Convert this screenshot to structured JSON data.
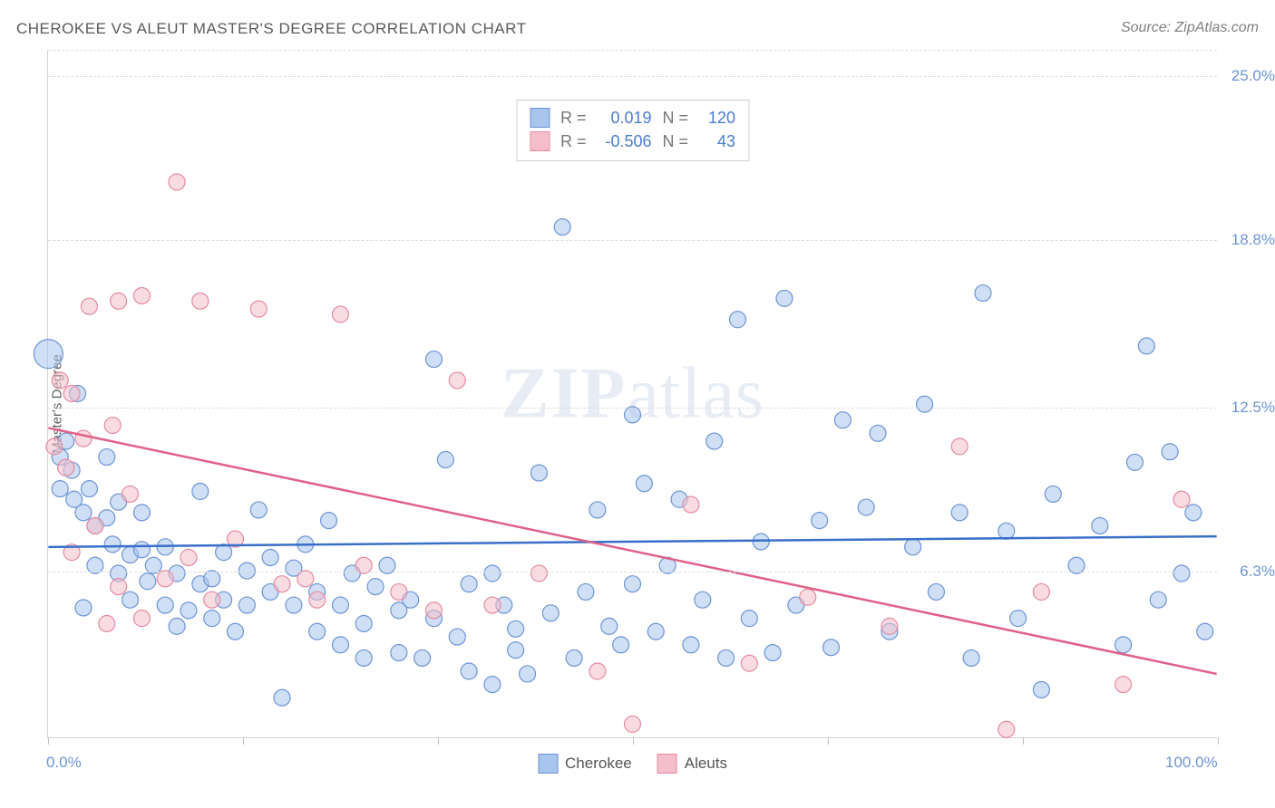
{
  "title": "CHEROKEE VS ALEUT MASTER'S DEGREE CORRELATION CHART",
  "source_prefix": "Source: ",
  "source_name": "ZipAtlas.com",
  "y_axis_label": "Master's Degree",
  "watermark_zip": "ZIP",
  "watermark_atlas": "atlas",
  "chart": {
    "type": "scatter",
    "xlim": [
      0,
      100
    ],
    "ylim": [
      0,
      26
    ],
    "x_ticks": [
      0,
      16.67,
      33.33,
      50,
      66.67,
      83.33,
      100
    ],
    "x_tick_labels_shown": {
      "0": "0.0%",
      "100": "100.0%"
    },
    "y_gridlines": [
      6.3,
      12.5,
      18.8,
      25.0
    ],
    "y_tick_labels": [
      "6.3%",
      "12.5%",
      "18.8%",
      "25.0%"
    ],
    "background_color": "#ffffff",
    "grid_color": "#dcdcdc",
    "axis_color": "#d5d5d5",
    "label_color": "#6d94d6",
    "title_color": "#5a5a5a",
    "title_fontsize": 17,
    "label_fontsize": 17,
    "point_radius": 9,
    "point_opacity": 0.55,
    "stroke_width": 1.2,
    "trend_line_width": 2.5
  },
  "series": [
    {
      "name": "Cherokee",
      "color_fill": "#a8c5ec",
      "color_stroke": "#6d94d6",
      "R": "0.019",
      "N": "120",
      "trend": {
        "x1": 0,
        "y1": 7.2,
        "x2": 100,
        "y2": 7.6,
        "color": "#3a6fc9"
      },
      "points": [
        {
          "x": 0,
          "y": 14.5,
          "r": 16
        },
        {
          "x": 1,
          "y": 10.6
        },
        {
          "x": 1.5,
          "y": 11.2
        },
        {
          "x": 1,
          "y": 9.4
        },
        {
          "x": 2,
          "y": 10.1
        },
        {
          "x": 2.2,
          "y": 9.0
        },
        {
          "x": 2.5,
          "y": 13.0
        },
        {
          "x": 3,
          "y": 8.5
        },
        {
          "x": 3,
          "y": 4.9
        },
        {
          "x": 3.5,
          "y": 9.4
        },
        {
          "x": 4,
          "y": 8.0
        },
        {
          "x": 4,
          "y": 6.5
        },
        {
          "x": 5,
          "y": 8.3
        },
        {
          "x": 5,
          "y": 10.6
        },
        {
          "x": 5.5,
          "y": 7.3
        },
        {
          "x": 6,
          "y": 8.9
        },
        {
          "x": 6,
          "y": 6.2
        },
        {
          "x": 7,
          "y": 6.9
        },
        {
          "x": 7,
          "y": 5.2
        },
        {
          "x": 8,
          "y": 8.5
        },
        {
          "x": 8,
          "y": 7.1
        },
        {
          "x": 8.5,
          "y": 5.9
        },
        {
          "x": 9,
          "y": 6.5
        },
        {
          "x": 10,
          "y": 5.0
        },
        {
          "x": 10,
          "y": 7.2
        },
        {
          "x": 11,
          "y": 4.2
        },
        {
          "x": 11,
          "y": 6.2
        },
        {
          "x": 12,
          "y": 4.8
        },
        {
          "x": 13,
          "y": 9.3
        },
        {
          "x": 13,
          "y": 5.8
        },
        {
          "x": 14,
          "y": 6.0
        },
        {
          "x": 14,
          "y": 4.5
        },
        {
          "x": 15,
          "y": 7.0
        },
        {
          "x": 15,
          "y": 5.2
        },
        {
          "x": 16,
          "y": 4.0
        },
        {
          "x": 17,
          "y": 6.3
        },
        {
          "x": 17,
          "y": 5.0
        },
        {
          "x": 18,
          "y": 8.6
        },
        {
          "x": 19,
          "y": 5.5
        },
        {
          "x": 19,
          "y": 6.8
        },
        {
          "x": 20,
          "y": 1.5
        },
        {
          "x": 21,
          "y": 5.0
        },
        {
          "x": 21,
          "y": 6.4
        },
        {
          "x": 22,
          "y": 7.3
        },
        {
          "x": 23,
          "y": 4.0
        },
        {
          "x": 23,
          "y": 5.5
        },
        {
          "x": 24,
          "y": 8.2
        },
        {
          "x": 25,
          "y": 3.5
        },
        {
          "x": 25,
          "y": 5.0
        },
        {
          "x": 26,
          "y": 6.2
        },
        {
          "x": 27,
          "y": 4.3
        },
        {
          "x": 27,
          "y": 3.0
        },
        {
          "x": 28,
          "y": 5.7
        },
        {
          "x": 29,
          "y": 6.5
        },
        {
          "x": 30,
          "y": 3.2
        },
        {
          "x": 30,
          "y": 4.8
        },
        {
          "x": 31,
          "y": 5.2
        },
        {
          "x": 32,
          "y": 3.0
        },
        {
          "x": 33,
          "y": 14.3
        },
        {
          "x": 33,
          "y": 4.5
        },
        {
          "x": 34,
          "y": 10.5
        },
        {
          "x": 35,
          "y": 3.8
        },
        {
          "x": 36,
          "y": 2.5
        },
        {
          "x": 36,
          "y": 5.8
        },
        {
          "x": 38,
          "y": 6.2
        },
        {
          "x": 38,
          "y": 2.0
        },
        {
          "x": 39,
          "y": 5.0
        },
        {
          "x": 40,
          "y": 4.1
        },
        {
          "x": 40,
          "y": 3.3
        },
        {
          "x": 41,
          "y": 2.4
        },
        {
          "x": 42,
          "y": 10.0
        },
        {
          "x": 43,
          "y": 4.7
        },
        {
          "x": 44,
          "y": 19.3
        },
        {
          "x": 45,
          "y": 3.0
        },
        {
          "x": 46,
          "y": 5.5
        },
        {
          "x": 47,
          "y": 8.6
        },
        {
          "x": 48,
          "y": 4.2
        },
        {
          "x": 49,
          "y": 3.5
        },
        {
          "x": 50,
          "y": 12.2
        },
        {
          "x": 50,
          "y": 5.8
        },
        {
          "x": 51,
          "y": 9.6
        },
        {
          "x": 52,
          "y": 4.0
        },
        {
          "x": 53,
          "y": 6.5
        },
        {
          "x": 54,
          "y": 9.0
        },
        {
          "x": 55,
          "y": 3.5
        },
        {
          "x": 56,
          "y": 5.2
        },
        {
          "x": 57,
          "y": 11.2
        },
        {
          "x": 58,
          "y": 3.0
        },
        {
          "x": 59,
          "y": 15.8
        },
        {
          "x": 60,
          "y": 4.5
        },
        {
          "x": 61,
          "y": 7.4
        },
        {
          "x": 62,
          "y": 3.2
        },
        {
          "x": 63,
          "y": 16.6
        },
        {
          "x": 64,
          "y": 5.0
        },
        {
          "x": 66,
          "y": 8.2
        },
        {
          "x": 67,
          "y": 3.4
        },
        {
          "x": 68,
          "y": 12.0
        },
        {
          "x": 70,
          "y": 8.7
        },
        {
          "x": 71,
          "y": 11.5
        },
        {
          "x": 72,
          "y": 4.0
        },
        {
          "x": 74,
          "y": 7.2
        },
        {
          "x": 75,
          "y": 12.6
        },
        {
          "x": 76,
          "y": 5.5
        },
        {
          "x": 78,
          "y": 8.5
        },
        {
          "x": 79,
          "y": 3.0
        },
        {
          "x": 80,
          "y": 16.8
        },
        {
          "x": 82,
          "y": 7.8
        },
        {
          "x": 83,
          "y": 4.5
        },
        {
          "x": 85,
          "y": 1.8
        },
        {
          "x": 86,
          "y": 9.2
        },
        {
          "x": 88,
          "y": 6.5
        },
        {
          "x": 90,
          "y": 8.0
        },
        {
          "x": 92,
          "y": 3.5
        },
        {
          "x": 93,
          "y": 10.4
        },
        {
          "x": 94,
          "y": 14.8
        },
        {
          "x": 95,
          "y": 5.2
        },
        {
          "x": 96,
          "y": 10.8
        },
        {
          "x": 97,
          "y": 6.2
        },
        {
          "x": 98,
          "y": 8.5
        },
        {
          "x": 99,
          "y": 4.0
        }
      ]
    },
    {
      "name": "Aleuts",
      "color_fill": "#f4bfcb",
      "color_stroke": "#e58aa2",
      "R": "-0.506",
      "N": "43",
      "trend": {
        "x1": 0,
        "y1": 11.7,
        "x2": 100,
        "y2": 2.4,
        "color": "#e06088"
      },
      "points": [
        {
          "x": 0.5,
          "y": 11.0
        },
        {
          "x": 1,
          "y": 13.5
        },
        {
          "x": 1.5,
          "y": 10.2
        },
        {
          "x": 2,
          "y": 13.0
        },
        {
          "x": 2,
          "y": 7.0
        },
        {
          "x": 3,
          "y": 11.3
        },
        {
          "x": 3.5,
          "y": 16.3
        },
        {
          "x": 4,
          "y": 8.0
        },
        {
          "x": 5,
          "y": 4.3
        },
        {
          "x": 5.5,
          "y": 11.8
        },
        {
          "x": 6,
          "y": 16.5
        },
        {
          "x": 6,
          "y": 5.7
        },
        {
          "x": 7,
          "y": 9.2
        },
        {
          "x": 8,
          "y": 16.7
        },
        {
          "x": 8,
          "y": 4.5
        },
        {
          "x": 10,
          "y": 6.0
        },
        {
          "x": 11,
          "y": 21.0
        },
        {
          "x": 12,
          "y": 6.8
        },
        {
          "x": 13,
          "y": 16.5
        },
        {
          "x": 14,
          "y": 5.2
        },
        {
          "x": 16,
          "y": 7.5
        },
        {
          "x": 18,
          "y": 16.2
        },
        {
          "x": 20,
          "y": 5.8
        },
        {
          "x": 22,
          "y": 6.0
        },
        {
          "x": 23,
          "y": 5.2
        },
        {
          "x": 25,
          "y": 16.0
        },
        {
          "x": 27,
          "y": 6.5
        },
        {
          "x": 30,
          "y": 5.5
        },
        {
          "x": 33,
          "y": 4.8
        },
        {
          "x": 35,
          "y": 13.5
        },
        {
          "x": 38,
          "y": 5.0
        },
        {
          "x": 42,
          "y": 6.2
        },
        {
          "x": 47,
          "y": 2.5
        },
        {
          "x": 50,
          "y": 0.5
        },
        {
          "x": 55,
          "y": 8.8
        },
        {
          "x": 60,
          "y": 2.8
        },
        {
          "x": 65,
          "y": 5.3
        },
        {
          "x": 72,
          "y": 4.2
        },
        {
          "x": 78,
          "y": 11.0
        },
        {
          "x": 82,
          "y": 0.3
        },
        {
          "x": 85,
          "y": 5.5
        },
        {
          "x": 92,
          "y": 2.0
        },
        {
          "x": 97,
          "y": 9.0
        }
      ]
    }
  ],
  "stat_legend": {
    "R_label": "R =",
    "N_label": "N ="
  },
  "series_legend_labels": [
    "Cherokee",
    "Aleuts"
  ]
}
